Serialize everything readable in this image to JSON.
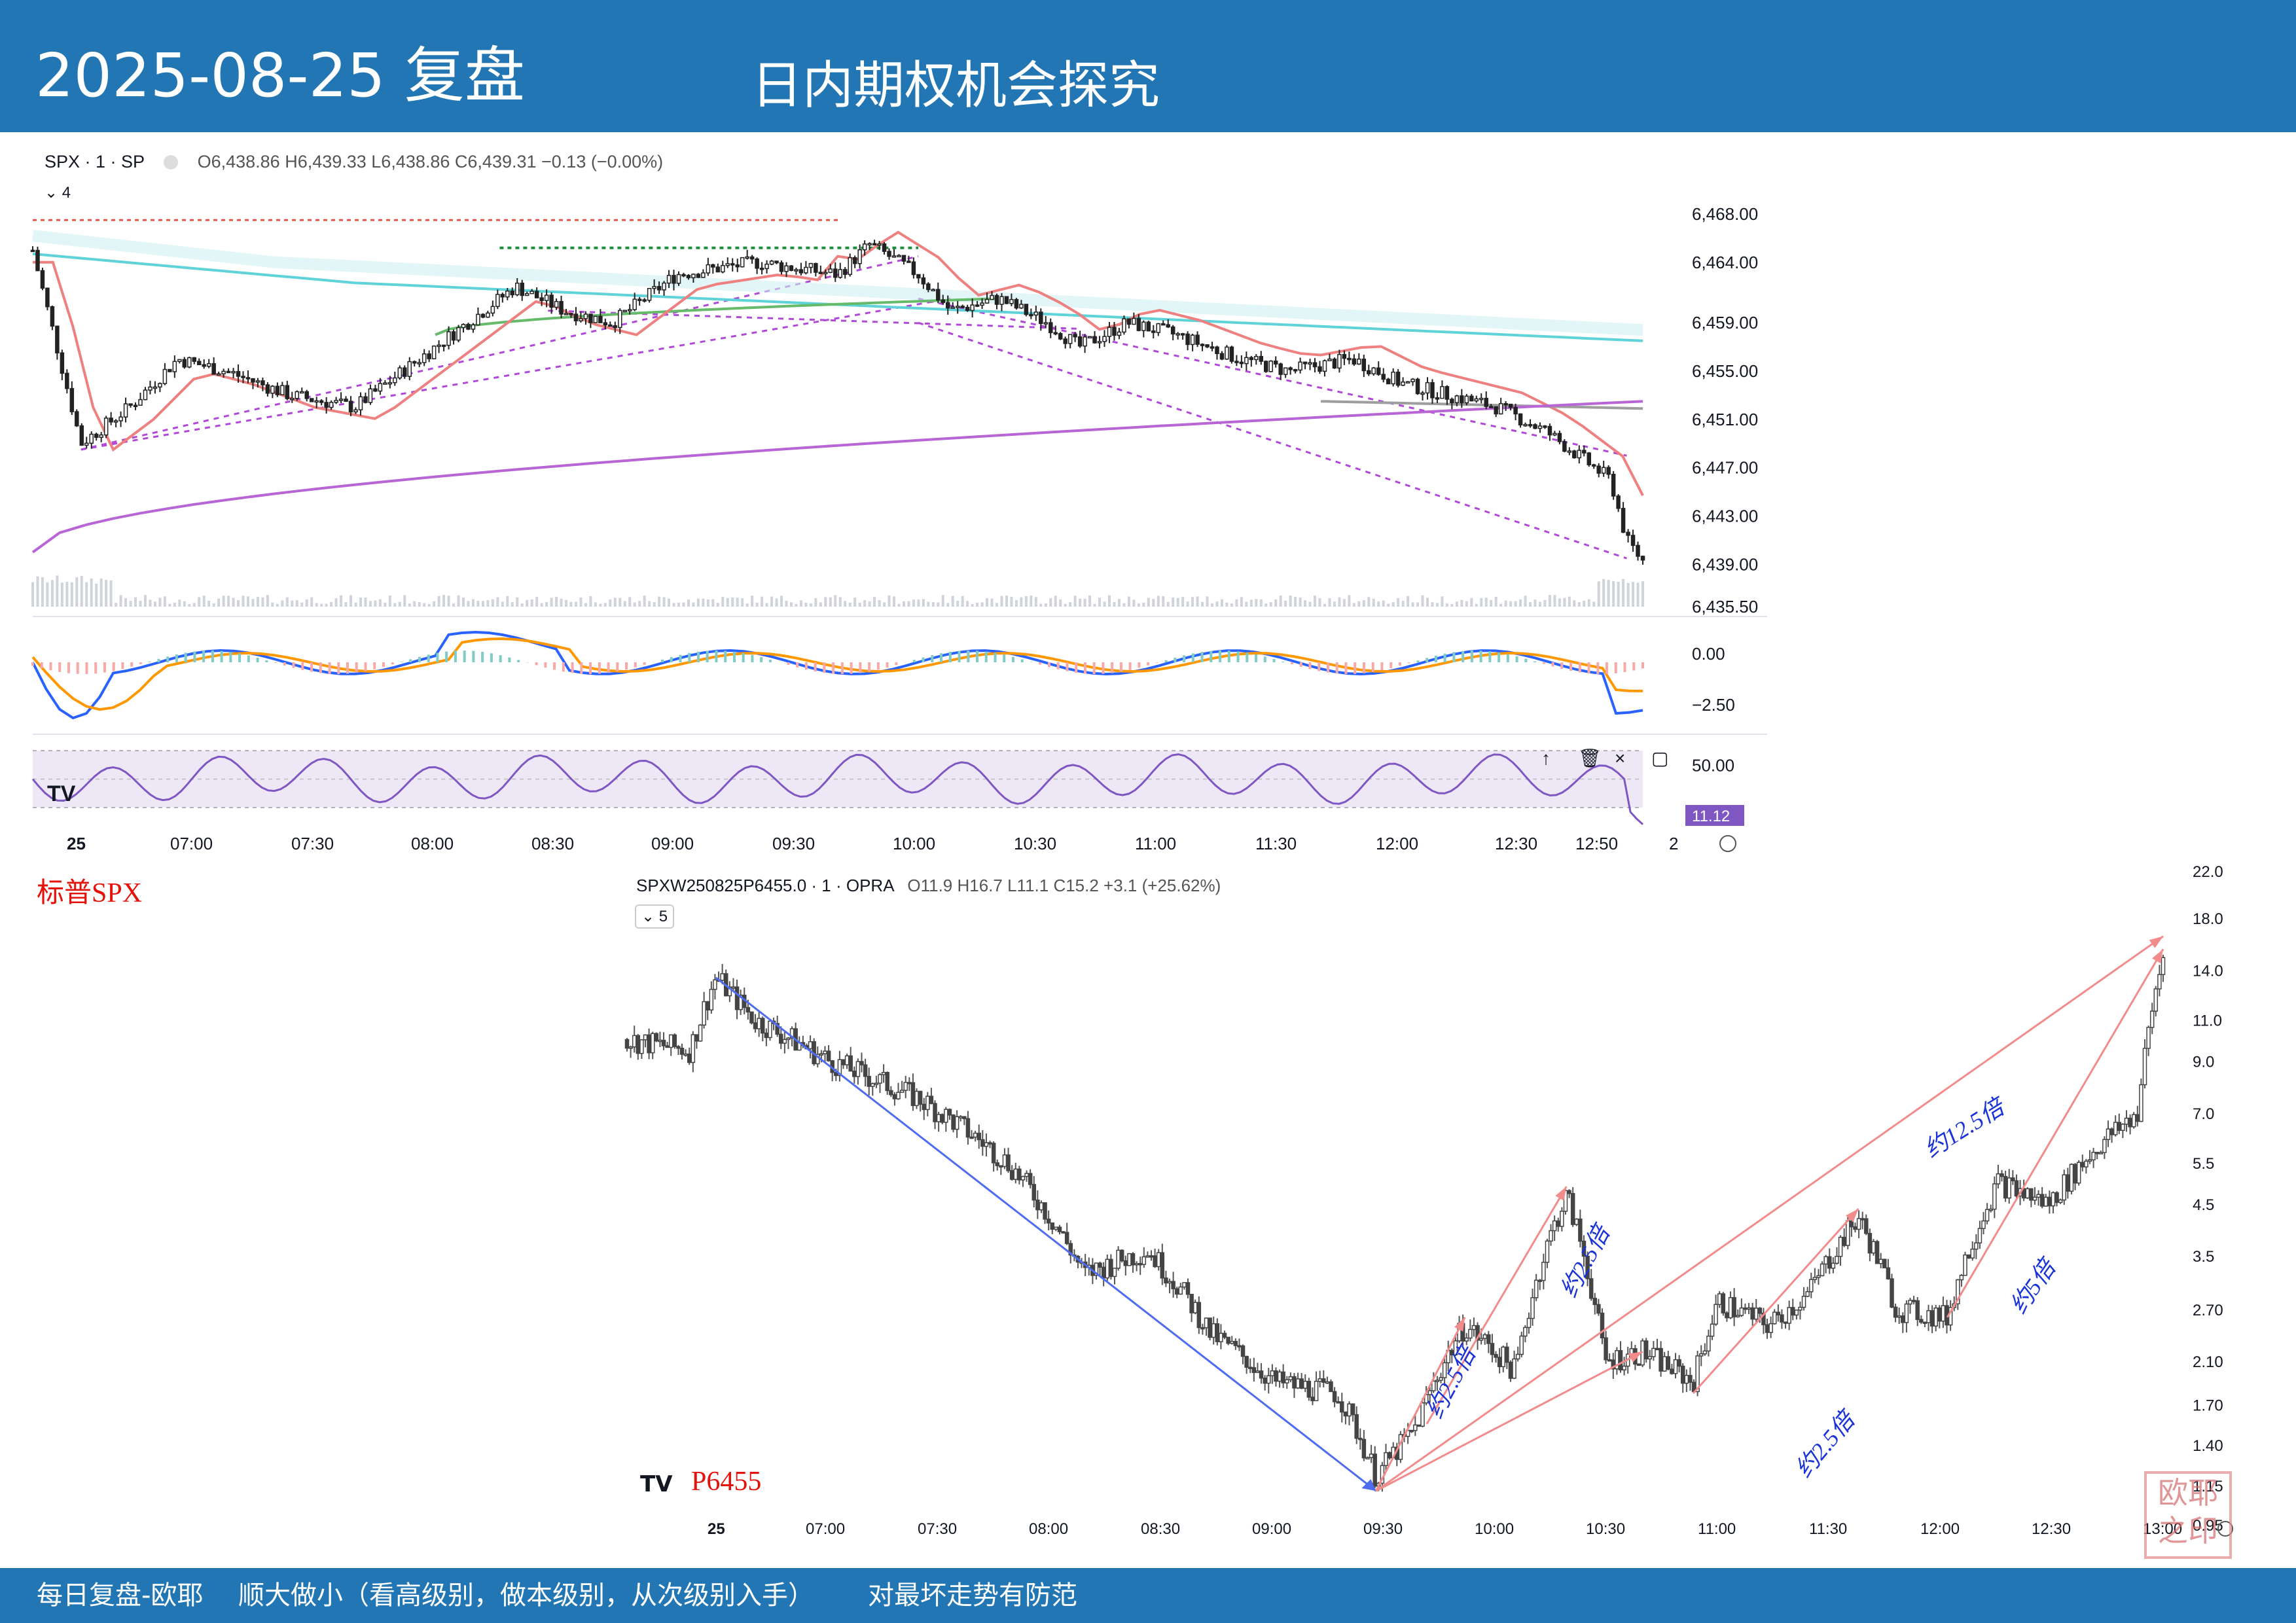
{
  "header": {
    "date": "2025-08-25 复盘",
    "subtitle": "日内期权机会探究"
  },
  "footer": {
    "left": "每日复盘-欧耶",
    "middle": "顺大做小（看高级别，做本级别，从次级别入手）",
    "right": "对最坏走势有防范"
  },
  "panel_top": {
    "symbol": "SPX · 1 · SP",
    "ohlc": "O6,438.86 H6,439.33 L6,438.86 C6,439.31 −0.13 (−0.00%)",
    "interval_badge": "4",
    "label": "标普SPX",
    "macd_ticks": [
      "0.00",
      "−2.50"
    ],
    "rsi_ticks": [
      "50.00"
    ],
    "rsi_value": "11.12",
    "rsi_badge_color": "#7e57c2",
    "time_axis_end": "2",
    "tool_icons": [
      "arrow-up-icon",
      "trash-icon",
      "close-icon",
      "square-icon"
    ]
  },
  "panel_bottom": {
    "symbol": "SPXW250825P6455.0 · 1 · OPRA",
    "ohlc": "O11.9 H16.7 L11.1 C15.2 +3.1 (+25.62%)",
    "interval_badge": "5",
    "label": "P6455"
  },
  "chart_data": [
    {
      "type": "candlestick",
      "symbol": "SPX",
      "x_ticks": [
        "25",
        "07:00",
        "07:30",
        "08:00",
        "08:30",
        "09:00",
        "09:30",
        "10:00",
        "10:30",
        "11:00",
        "11:30",
        "12:00",
        "12:30",
        "12:50"
      ],
      "y_ticks": [
        "6,468.00",
        "6,464.00",
        "6,459.00",
        "6,455.00",
        "6,451.00",
        "6,447.00",
        "6,443.00",
        "6,439.00",
        "6,435.50"
      ],
      "ylim": [
        6435.5,
        6468
      ],
      "price_path": [
        [
          0,
          6465
        ],
        [
          0.03,
          6449
        ],
        [
          0.06,
          6452
        ],
        [
          0.09,
          6456
        ],
        [
          0.12,
          6455
        ],
        [
          0.16,
          6453
        ],
        [
          0.2,
          6452
        ],
        [
          0.23,
          6455
        ],
        [
          0.26,
          6458
        ],
        [
          0.3,
          6462
        ],
        [
          0.33,
          6460
        ],
        [
          0.36,
          6459
        ],
        [
          0.4,
          6463
        ],
        [
          0.45,
          6464
        ],
        [
          0.5,
          6463
        ],
        [
          0.52,
          6465.5
        ],
        [
          0.55,
          6463
        ],
        [
          0.57,
          6460
        ],
        [
          0.6,
          6461
        ],
        [
          0.63,
          6459
        ],
        [
          0.65,
          6457
        ],
        [
          0.68,
          6459
        ],
        [
          0.71,
          6458
        ],
        [
          0.75,
          6456
        ],
        [
          0.78,
          6455
        ],
        [
          0.82,
          6456
        ],
        [
          0.85,
          6454
        ],
        [
          0.88,
          6453
        ],
        [
          0.91,
          6452
        ],
        [
          0.94,
          6450
        ],
        [
          0.96,
          6448
        ],
        [
          0.98,
          6446
        ],
        [
          0.99,
          6441
        ],
        [
          1.0,
          6439.3
        ]
      ]
    },
    {
      "type": "candlestick",
      "symbol": "SPXW250825P6455.0",
      "x_ticks": [
        "25",
        "07:00",
        "07:30",
        "08:00",
        "08:30",
        "09:00",
        "09:30",
        "10:00",
        "10:30",
        "11:00",
        "11:30",
        "12:00",
        "12:30",
        "13:00"
      ],
      "y_ticks": [
        "22.0",
        "18.0",
        "14.0",
        "11.0",
        "9.0",
        "7.0",
        "5.5",
        "4.5",
        "3.5",
        "2.70",
        "2.10",
        "1.70",
        "1.40",
        "1.15",
        "0.95"
      ],
      "ylim": [
        0.95,
        22.0
      ],
      "log_scale": true,
      "price_path": [
        [
          0,
          10.0
        ],
        [
          0.05,
          9.5
        ],
        [
          0.07,
          13.5
        ],
        [
          0.1,
          11.0
        ],
        [
          0.16,
          9.0
        ],
        [
          0.23,
          7.5
        ],
        [
          0.3,
          5.5
        ],
        [
          0.36,
          3.2
        ],
        [
          0.41,
          3.6
        ],
        [
          0.46,
          2.4
        ],
        [
          0.51,
          1.9
        ],
        [
          0.56,
          1.8
        ],
        [
          0.59,
          1.2
        ],
        [
          0.62,
          1.5
        ],
        [
          0.66,
          2.5
        ],
        [
          0.7,
          2.0
        ],
        [
          0.74,
          4.7
        ],
        [
          0.77,
          2.1
        ],
        [
          0.8,
          2.2
        ],
        [
          0.84,
          1.9
        ],
        [
          0.86,
          2.8
        ],
        [
          0.9,
          2.5
        ],
        [
          0.93,
          2.9
        ],
        [
          0.97,
          4.2
        ],
        [
          1.0,
          2.7
        ],
        [
          1.04,
          2.6
        ],
        [
          1.08,
          5.0
        ],
        [
          1.12,
          4.5
        ],
        [
          1.16,
          6.0
        ],
        [
          1.19,
          7.0
        ],
        [
          1.21,
          15.0
        ]
      ],
      "annotations": [
        "约2.5倍",
        "约2.5倍",
        "约2.5倍",
        "约12.5倍",
        "约5倍"
      ]
    }
  ]
}
